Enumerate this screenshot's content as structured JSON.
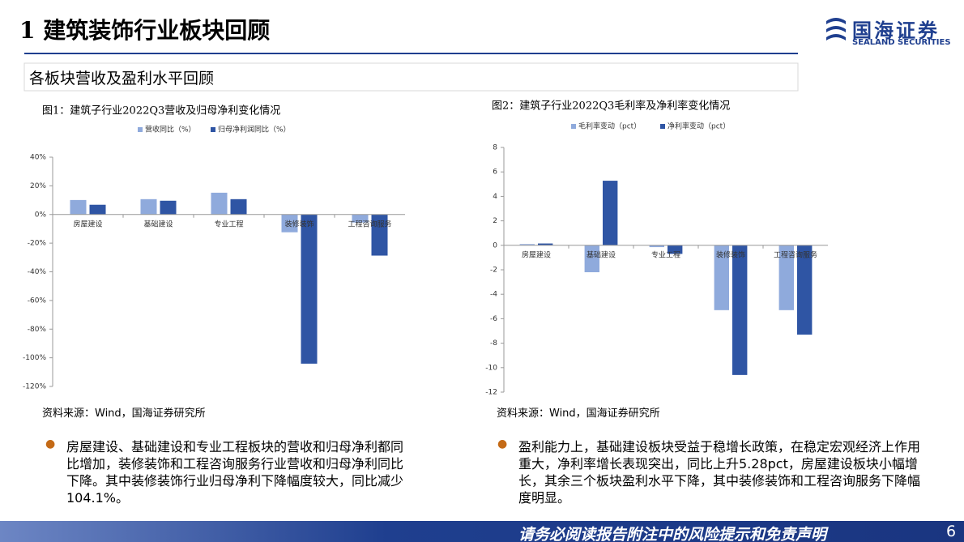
{
  "header": {
    "title": "1 建筑装饰行业板块回顾",
    "logo_name": "国海证券",
    "logo_en": "SEALAND SECURITIES"
  },
  "section": "各板块营收及盈利水平回顾",
  "chart_data": [
    {
      "type": "bar",
      "title": "图1：建筑子行业2022Q3营收及归母净利变化情况",
      "categories": [
        "房屋建设",
        "基础建设",
        "专业工程",
        "装修装饰",
        "工程咨询服务"
      ],
      "series": [
        {
          "name": "营收同比（%）",
          "color": "#8faadc",
          "values": [
            10.1,
            10.7,
            15.2,
            -12.4,
            -5.6
          ]
        },
        {
          "name": "归母净利润同比（%）",
          "color": "#2f55a4",
          "values": [
            6.8,
            9.6,
            10.7,
            -104.1,
            -28.7
          ]
        }
      ],
      "ylim": [
        -120,
        40
      ],
      "yticks": [
        {
          "value": -120,
          "label": "-120%"
        },
        {
          "value": -100,
          "label": "-100%"
        },
        {
          "value": -80,
          "label": "-80%"
        },
        {
          "value": -60,
          "label": "-60%"
        },
        {
          "value": -40,
          "label": "-40%"
        },
        {
          "value": -20,
          "label": "-20%"
        },
        {
          "value": 0,
          "label": "0%"
        },
        {
          "value": 20,
          "label": "20%"
        },
        {
          "value": 40,
          "label": "40%"
        }
      ],
      "grid": false
    },
    {
      "type": "bar",
      "title": "图2：建筑子行业2022Q3毛利率及净利率变化情况",
      "categories": [
        "房屋建设",
        "基础建设",
        "专业工程",
        "装修装饰",
        "工程咨询服务"
      ],
      "series": [
        {
          "name": "毛利率变动（pct）",
          "color": "#8faadc",
          "values": [
            0.1,
            -2.2,
            -0.15,
            -5.3,
            -5.3
          ]
        },
        {
          "name": "净利率变动（pct）",
          "color": "#2f55a4",
          "values": [
            0.15,
            5.28,
            -0.7,
            -10.6,
            -7.3
          ]
        }
      ],
      "ylim": [
        -12,
        8
      ],
      "yticks": [
        -12,
        -10,
        -8,
        -6,
        -4,
        -2,
        0,
        2,
        4,
        6,
        8
      ],
      "grid": false
    }
  ],
  "sources": [
    "资料来源：Wind，国海证券研究所",
    "资料来源：Wind，国海证券研究所"
  ],
  "bullets": [
    "房屋建设、基础建设和专业工程板块的营收和归母净利都同比增加，装修装饰和工程咨询服务行业营收和归母净利同比下降。其中装修装饰行业归母净利下降幅度较大，同比减少104.1%。",
    "盈利能力上，基础建设板块受益于稳增长政策，在稳定宏观经济上作用重大，净利率增长表现突出，同比上升5.28pct，房屋建设板块小幅增长，其余三个板块盈利水平下降，其中装修装饰和工程咨询服务下降幅度明显。"
  ],
  "footer": {
    "text": "请务必阅读报告附注中的风险提示和免责声明",
    "page": "6"
  }
}
